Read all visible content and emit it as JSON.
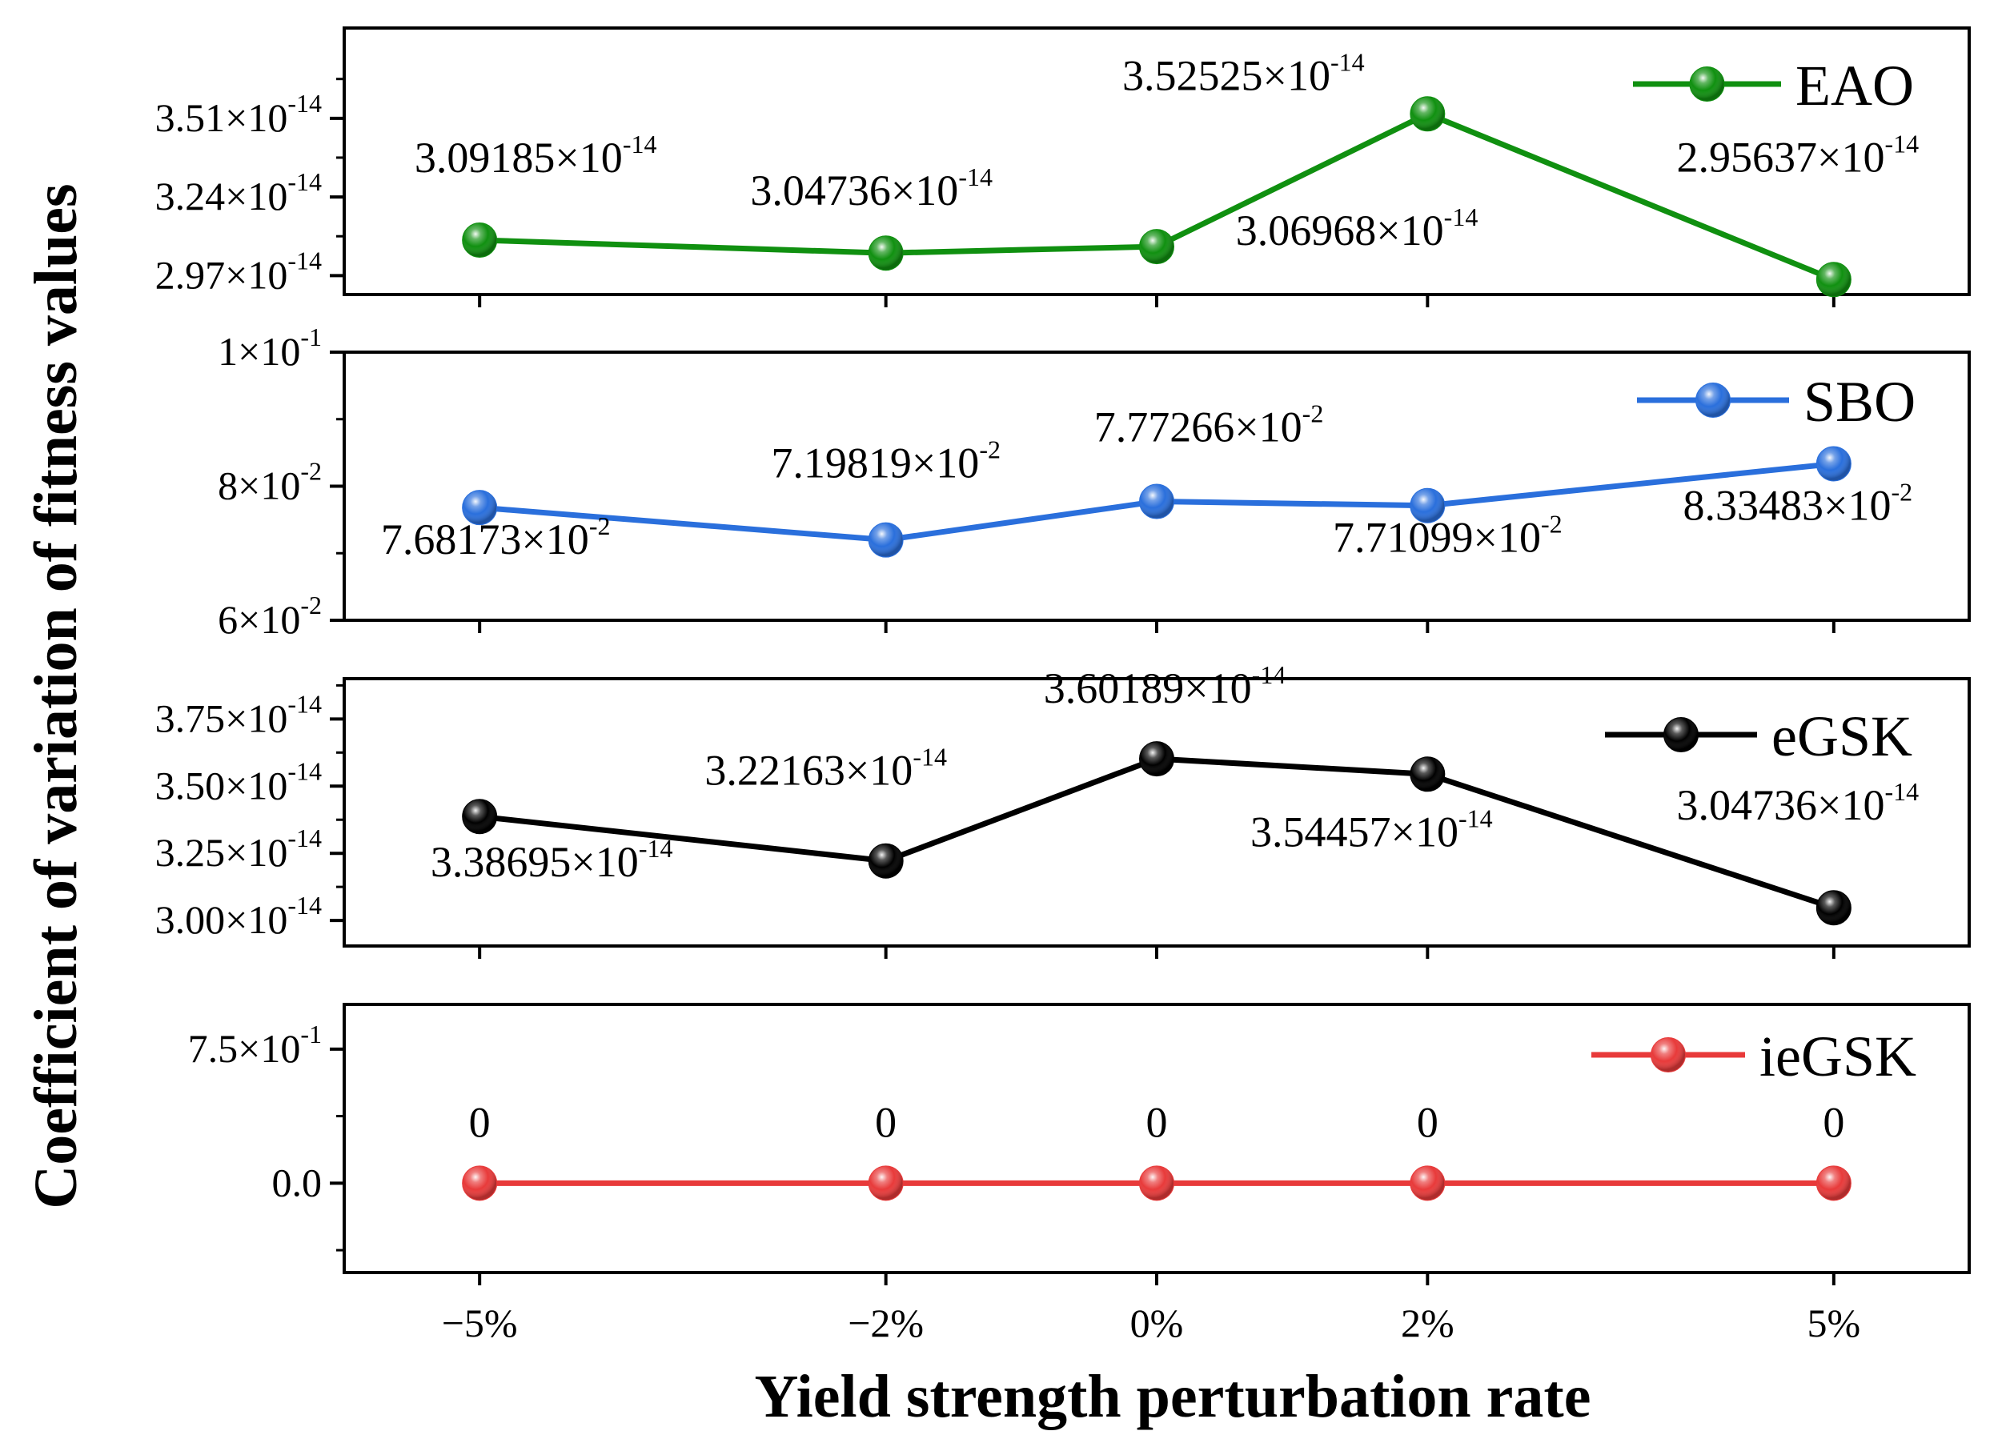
{
  "chart_data": {
    "type": "line",
    "xlabel": "Yield strength perturbation rate",
    "ylabel": "Coefficient of variation of fitness values",
    "categories": [
      "−5%",
      "−2%",
      "0%",
      "2%",
      "5%"
    ],
    "x_values": [
      -5,
      -2,
      0,
      2,
      5
    ],
    "xlim": [
      -6,
      6
    ],
    "panels": [
      {
        "series_name": "EAO",
        "color": "#109010",
        "values": [
          3.09185e-14,
          3.04736e-14,
          3.06968e-14,
          3.52525e-14,
          2.95637e-14
        ],
        "value_labels": [
          {
            "m": "3.09185×10",
            "e": "-14"
          },
          {
            "m": "3.04736×10",
            "e": "-14"
          },
          {
            "m": "3.06968×10",
            "e": "-14"
          },
          {
            "m": "3.52525×10",
            "e": "-14"
          },
          {
            "m": "2.95637×10",
            "e": "-14"
          }
        ],
        "ylim": [
          2.905e-14,
          3.82e-14
        ],
        "y_ticks": [
          {
            "v": 2.97e-14,
            "m": "2.97×10",
            "e": "-14"
          },
          {
            "v": 3.24e-14,
            "m": "3.24×10",
            "e": "-14"
          },
          {
            "v": 3.51e-14,
            "m": "3.51×10",
            "e": "-14"
          }
        ],
        "legend_position": "top-right"
      },
      {
        "series_name": "SBO",
        "color": "#2a6fdc",
        "values": [
          0.0768173,
          0.0719819,
          0.0777266,
          0.0771099,
          0.0833483
        ],
        "value_labels": [
          {
            "m": "7.68173×10",
            "e": "-2"
          },
          {
            "m": "7.19819×10",
            "e": "-2"
          },
          {
            "m": "7.77266×10",
            "e": "-2"
          },
          {
            "m": "7.71099×10",
            "e": "-2"
          },
          {
            "m": "8.33483×10",
            "e": "-2"
          }
        ],
        "ylim": [
          0.06,
          0.1
        ],
        "y_ticks": [
          {
            "v": 0.06,
            "m": "6×10",
            "e": "-2"
          },
          {
            "v": 0.08,
            "m": "8×10",
            "e": "-2"
          },
          {
            "v": 0.1,
            "m": "1×10",
            "e": "-1"
          }
        ],
        "legend_position": "top-right"
      },
      {
        "series_name": "eGSK",
        "color": "#000000",
        "values": [
          3.38695e-14,
          3.22163e-14,
          3.60189e-14,
          3.54457e-14,
          3.04736e-14
        ],
        "value_labels": [
          {
            "m": "3.38695×10",
            "e": "-14"
          },
          {
            "m": "3.22163×10",
            "e": "-14"
          },
          {
            "m": "3.60189×10",
            "e": "-14"
          },
          {
            "m": "3.54457×10",
            "e": "-14"
          },
          {
            "m": "3.04736×10",
            "e": "-14"
          }
        ],
        "ylim": [
          2.905e-14,
          3.9e-14
        ],
        "y_ticks": [
          {
            "v": 3e-14,
            "m": "3.00×10",
            "e": "-14"
          },
          {
            "v": 3.25e-14,
            "m": "3.25×10",
            "e": "-14"
          },
          {
            "v": 3.5e-14,
            "m": "3.50×10",
            "e": "-14"
          },
          {
            "v": 3.75e-14,
            "m": "3.75×10",
            "e": "-14"
          }
        ],
        "legend_position": "top-right"
      },
      {
        "series_name": "ieGSK",
        "color": "#e83a3a",
        "values": [
          0,
          0,
          0,
          0,
          0
        ],
        "value_labels": [
          {
            "m": "0",
            "e": ""
          },
          {
            "m": "0",
            "e": ""
          },
          {
            "m": "0",
            "e": ""
          },
          {
            "m": "0",
            "e": ""
          },
          {
            "m": "0",
            "e": ""
          }
        ],
        "ylim": [
          -0.5,
          1.0
        ],
        "y_ticks": [
          {
            "v": 0,
            "m": "0.0",
            "e": ""
          },
          {
            "v": 0.75,
            "m": "7.5×10",
            "e": "-1"
          }
        ],
        "legend_position": "top-right"
      }
    ]
  }
}
